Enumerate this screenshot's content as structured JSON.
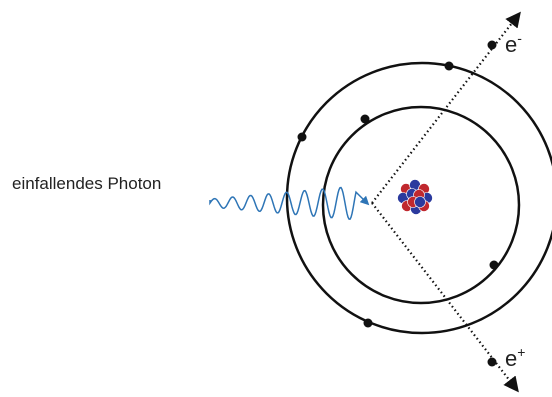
{
  "labels": {
    "photon": "einfallendes Photon",
    "electron": {
      "symbol": "e",
      "charge": "-"
    },
    "positron": {
      "symbol": "e",
      "charge": "+"
    }
  }
}
